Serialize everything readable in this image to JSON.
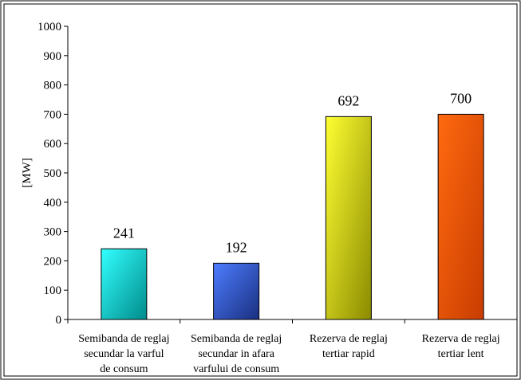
{
  "chart_data": {
    "type": "bar",
    "title": "",
    "xlabel": "",
    "ylabel": "[MW]",
    "ylim": [
      0,
      1000
    ],
    "yticks": [
      0,
      100,
      200,
      300,
      400,
      500,
      600,
      700,
      800,
      900,
      1000
    ],
    "grid": false,
    "legend": "none",
    "categories": [
      [
        "Semibanda de reglaj",
        "secundar la varful",
        "de consum"
      ],
      [
        "Semibanda de reglaj",
        "secundar in afara",
        "varfului de consum"
      ],
      [
        "Rezerva de reglaj",
        "tertiar rapid"
      ],
      [
        "Rezerva de reglaj",
        "tertiar lent"
      ]
    ],
    "values": [
      241,
      192,
      692,
      700
    ],
    "data_labels": [
      "241",
      "192",
      "692",
      "700"
    ],
    "colors": [
      [
        "#33ffff",
        "#008b8b"
      ],
      [
        "#4d7dff",
        "#1a2f80"
      ],
      [
        "#ffff33",
        "#8a8a00"
      ],
      [
        "#ff6a10",
        "#c83c00"
      ]
    ]
  }
}
